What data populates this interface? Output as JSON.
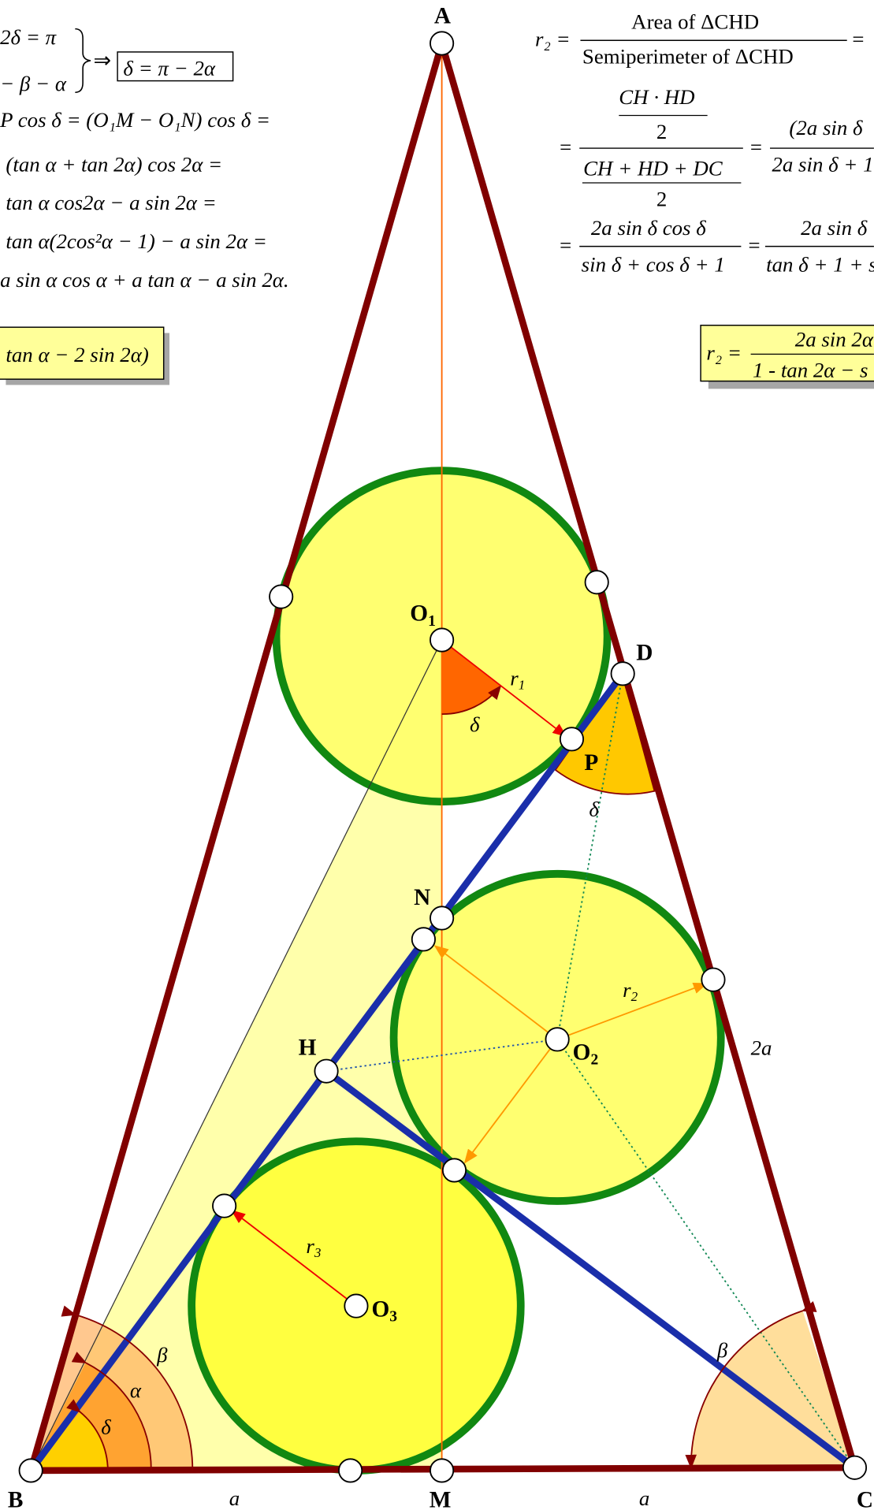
{
  "labels": {
    "A": "A",
    "B": "B",
    "C": "C",
    "D": "D",
    "H": "H",
    "M": "M",
    "N": "N",
    "P": "P",
    "O1": "O",
    "O1sub": "1",
    "O2": "O",
    "O2sub": "2",
    "O3": "O",
    "O3sub": "3",
    "r1": "r",
    "r1sub": "1",
    "r2": "r",
    "r2sub": "2",
    "r3": "r",
    "r3sub": "3",
    "alpha": "α",
    "beta_b": "β",
    "beta_c": "β",
    "delta_b": "δ",
    "delta_o1": "δ",
    "delta_d": "δ",
    "a_left": "a",
    "a_right": "a",
    "two_a": "2a"
  },
  "left_formulas": {
    "line1": "2δ = π",
    "line2": "− β − α",
    "implies": "⇒",
    "boxed1": "δ = π − 2α",
    "line3": "P cos δ = (O₁M − O₁N) cos δ =",
    "line4": "(tan α + tan 2α) cos 2α =",
    "line5": "tan α cos2α − a sin 2α =",
    "line6": "tan α(2cos²α − 1)  − a sin 2α =",
    "line7": "a sin α cos α + a tan α − a sin 2α.",
    "boxed2": "tan α − 2 sin 2α)"
  },
  "right_formulas": {
    "r2": "r₂ =",
    "area": "Area of ΔCHD",
    "semi": "Semiperimeter of ΔCHD",
    "eq1": "=",
    "num2": "CH · HD",
    "half1": "2",
    "eq2": "=",
    "den2": "CH + HD + DC",
    "half2": "2",
    "eq3": "=",
    "num3": "(2a sin δ",
    "den3": "2a sin δ + 1",
    "eq4": "=",
    "num4": "2a sin δ cos δ",
    "den4": "sin δ + cos δ + 1",
    "eq5": "=",
    "num5": "2a sin δ",
    "den5": "tan δ + 1 + s",
    "box_r2": "r₂ =",
    "box_num": "2a sin 2α",
    "box_den": "1 - tan 2α − s"
  }
}
